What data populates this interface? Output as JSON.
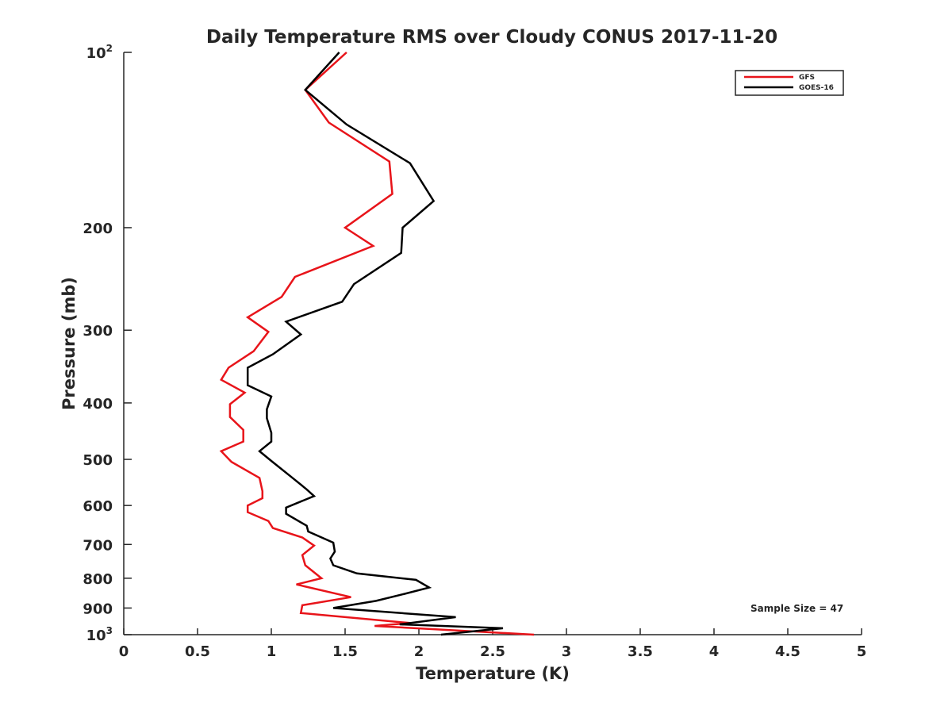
{
  "chart_data": {
    "type": "line",
    "title": "Daily Temperature RMS over Cloudy CONUS 2017-11-20",
    "xlabel": "Temperature (K)",
    "ylabel": "Pressure (mb)",
    "xlim": [
      0,
      5
    ],
    "ylim": [
      100,
      1000
    ],
    "y_scale": "log",
    "y_reversed": true,
    "x_ticks": [
      "0",
      "0.5",
      "1",
      "1.5",
      "2",
      "2.5",
      "3",
      "3.5",
      "4",
      "4.5",
      "5"
    ],
    "x_tick_values": [
      0,
      0.5,
      1,
      1.5,
      2,
      2.5,
      3,
      3.5,
      4,
      4.5,
      5
    ],
    "y_ticks": [
      {
        "value": 100,
        "base": "10",
        "exp": "2"
      },
      {
        "value": 200,
        "label": "200"
      },
      {
        "value": 300,
        "label": "300"
      },
      {
        "value": 400,
        "label": "400"
      },
      {
        "value": 500,
        "label": "500"
      },
      {
        "value": 600,
        "label": "600"
      },
      {
        "value": 700,
        "label": "700"
      },
      {
        "value": 800,
        "label": "800"
      },
      {
        "value": 900,
        "label": "900"
      },
      {
        "value": 1000,
        "base": "10",
        "exp": "3"
      }
    ],
    "grid": false,
    "legend_position": "top-right",
    "annotation": "Sample Size = 47",
    "series": [
      {
        "name": "GFS",
        "color": "#e8141a",
        "points": [
          [
            1.51,
            100
          ],
          [
            1.23,
            116
          ],
          [
            1.39,
            132
          ],
          [
            1.8,
            154
          ],
          [
            1.82,
            175
          ],
          [
            1.5,
            200
          ],
          [
            1.69,
            215
          ],
          [
            1.16,
            243
          ],
          [
            1.07,
            263
          ],
          [
            0.84,
            285
          ],
          [
            0.98,
            302
          ],
          [
            0.88,
            326
          ],
          [
            0.71,
            348
          ],
          [
            0.66,
            365
          ],
          [
            0.82,
            384
          ],
          [
            0.72,
            402
          ],
          [
            0.72,
            423
          ],
          [
            0.81,
            445
          ],
          [
            0.81,
            466
          ],
          [
            0.66,
            484
          ],
          [
            0.73,
            505
          ],
          [
            0.92,
            538
          ],
          [
            0.94,
            567
          ],
          [
            0.94,
            583
          ],
          [
            0.84,
            600
          ],
          [
            0.84,
            616
          ],
          [
            0.98,
            638
          ],
          [
            1.01,
            656
          ],
          [
            1.21,
            681
          ],
          [
            1.29,
            703
          ],
          [
            1.21,
            730
          ],
          [
            1.23,
            760
          ],
          [
            1.34,
            800
          ],
          [
            1.17,
            820
          ],
          [
            1.54,
            862
          ],
          [
            1.21,
            890
          ],
          [
            1.2,
            918
          ],
          [
            1.94,
            955
          ],
          [
            1.7,
            966
          ],
          [
            2.78,
            1000
          ]
        ]
      },
      {
        "name": "GOES-16",
        "color": "#000000",
        "points": [
          [
            1.46,
            100
          ],
          [
            1.23,
            116
          ],
          [
            1.51,
            133
          ],
          [
            1.94,
            155
          ],
          [
            2.1,
            180
          ],
          [
            1.89,
            200
          ],
          [
            1.88,
            221
          ],
          [
            1.56,
            250
          ],
          [
            1.48,
            268
          ],
          [
            1.1,
            290
          ],
          [
            1.2,
            305
          ],
          [
            1.01,
            330
          ],
          [
            0.84,
            348
          ],
          [
            0.84,
            373
          ],
          [
            1.0,
            390
          ],
          [
            0.97,
            410
          ],
          [
            0.97,
            425
          ],
          [
            1.0,
            450
          ],
          [
            1.0,
            466
          ],
          [
            0.92,
            484
          ],
          [
            1.0,
            503
          ],
          [
            1.14,
            537
          ],
          [
            1.24,
            563
          ],
          [
            1.29,
            578
          ],
          [
            1.1,
            605
          ],
          [
            1.1,
            620
          ],
          [
            1.24,
            650
          ],
          [
            1.25,
            665
          ],
          [
            1.42,
            695
          ],
          [
            1.43,
            720
          ],
          [
            1.4,
            740
          ],
          [
            1.42,
            760
          ],
          [
            1.58,
            785
          ],
          [
            1.98,
            805
          ],
          [
            2.07,
            830
          ],
          [
            1.87,
            855
          ],
          [
            1.71,
            875
          ],
          [
            1.42,
            900
          ],
          [
            2.25,
            933
          ],
          [
            1.87,
            960
          ],
          [
            2.57,
            975
          ],
          [
            2.15,
            1000
          ]
        ]
      }
    ]
  }
}
